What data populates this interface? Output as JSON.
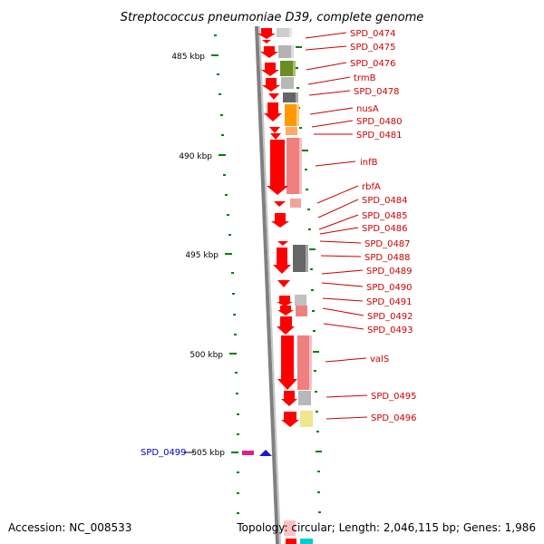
{
  "title": "Streptococcus pneumoniae D39, complete genome",
  "accession": "Accession: NC_008533",
  "summary": "Topology: circular; Length: 2,046,115 bp; Genes: 1,986",
  "scale_ticks": [
    {
      "kbp": 485,
      "label": "485 kbp"
    },
    {
      "kbp": 490,
      "label": "490 kbp"
    },
    {
      "kbp": 495,
      "label": "495 kbp"
    },
    {
      "kbp": 500,
      "label": "500 kbp"
    },
    {
      "kbp": 505,
      "label": "505 kbp"
    }
  ],
  "gene_labels": [
    "SPD_0474",
    "SPD_0475",
    "SPD_0476",
    "trmB",
    "SPD_0478",
    "nusA",
    "SPD_0480",
    "SPD_0481",
    "infB",
    "rbfA",
    "SPD_0484",
    "SPD_0485",
    "SPD_0486",
    "SPD_0487",
    "SPD_0488",
    "SPD_0489",
    "SPD_0490",
    "SPD_0491",
    "SPD_0492",
    "SPD_0493",
    "valS",
    "SPD_0495",
    "SPD_0496"
  ],
  "highlighted_gene": "SPD_0499",
  "colors": {
    "gene": "#ff0000",
    "gene_label": "#cc0000",
    "highlight_label": "#0000cc",
    "backbone": "#808080",
    "tick": "#008000",
    "marker_pink": "#e0208a",
    "marker_blue": "#1a1acc"
  }
}
